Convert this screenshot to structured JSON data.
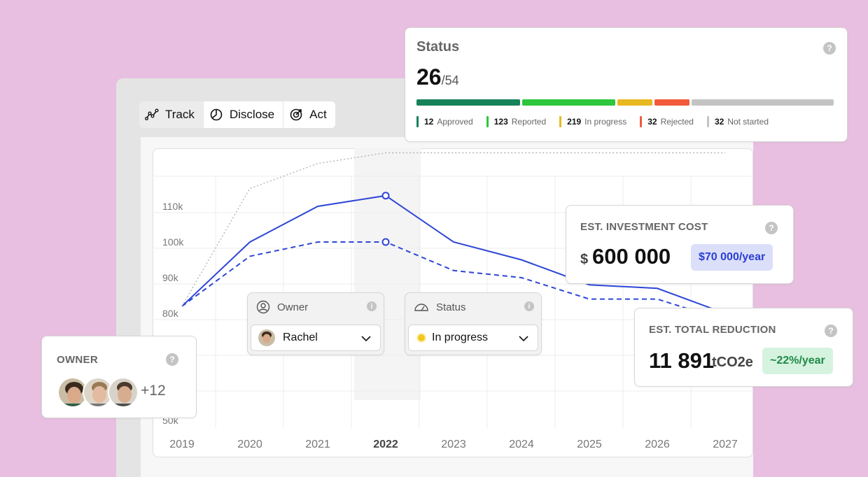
{
  "tabs": [
    {
      "label": "Track",
      "icon": "track-icon"
    },
    {
      "label": "Disclose",
      "icon": "pie-chart-icon"
    },
    {
      "label": "Act",
      "icon": "target-icon"
    }
  ],
  "status": {
    "title": "Status",
    "count": "26",
    "total": "/54",
    "segments": [
      {
        "label": "Approved",
        "count": "12",
        "color": "#16825a"
      },
      {
        "label": "Reported",
        "count": "123",
        "color": "#2ec63d"
      },
      {
        "label": "In progress",
        "count": "219",
        "color": "#e8b821"
      },
      {
        "label": "Rejected",
        "count": "32",
        "color": "#f25a3a"
      },
      {
        "label": "Not started",
        "count": "32",
        "color": "#c4c4c4"
      }
    ]
  },
  "investment": {
    "label": "EST. INVESTMENT COST",
    "currency": "$",
    "value": "600 000",
    "per_year": "$70 000/year"
  },
  "reduction": {
    "label": "EST. TOTAL REDUCTION",
    "value": "11 891",
    "unit": "tCO2e",
    "per_year": "~22%/year"
  },
  "owner": {
    "label": "OWNER",
    "more": "+12",
    "avatars": [
      "avatar-1",
      "avatar-2",
      "avatar-3"
    ]
  },
  "filters": {
    "owner": {
      "label": "Owner",
      "value": "Rachel"
    },
    "status": {
      "label": "Status",
      "value": "In progress",
      "dot_color": "#f2c81d"
    }
  },
  "help_symbol": "?",
  "info_symbol": "i",
  "chart_data": {
    "type": "line",
    "x": [
      "2019",
      "2020",
      "2021",
      "2022",
      "2023",
      "2024",
      "2025",
      "2026",
      "2027"
    ],
    "highlight_x": "2022",
    "yticks": [
      "110k",
      "100k",
      "90k",
      "80k",
      "50k"
    ],
    "series": [
      {
        "values": [
          82,
          100,
          110,
          113,
          100,
          95,
          88,
          87,
          80
        ],
        "style": "solid",
        "color": "#2e46d6"
      },
      {
        "values": [
          82,
          96,
          100,
          100,
          92,
          90,
          84,
          84,
          78
        ],
        "style": "dashed",
        "color": "#2e46d6"
      },
      {
        "values": [
          82,
          115,
          122,
          125,
          125,
          125,
          125,
          125,
          125
        ],
        "style": "dotted",
        "color": "#aaaaaa"
      }
    ],
    "grid": true
  }
}
